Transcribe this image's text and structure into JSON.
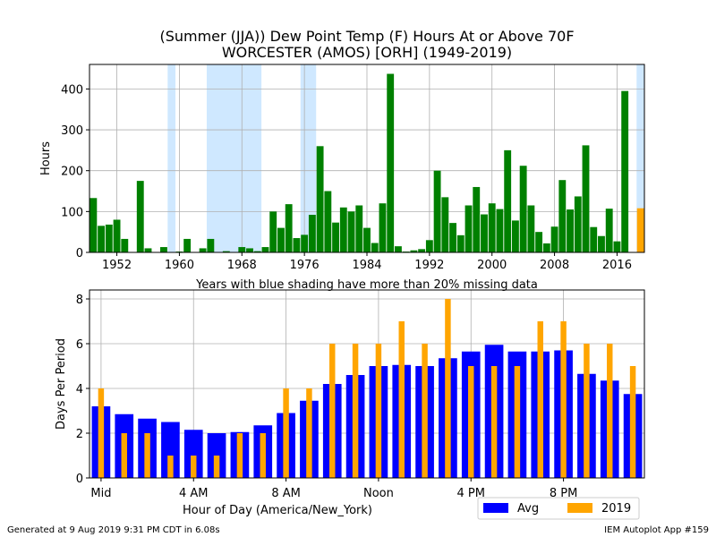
{
  "title_line1": "(Summer (JJA)) Dew Point Temp (F) Hours At or Above 70F",
  "title_line2": "WORCESTER (AMOS) [ORH] (1949-2019)",
  "note": "Years with blue shading have more than 20% missing data",
  "footer_left": "Generated at 9 Aug 2019 9:31 PM CDT in 6.08s",
  "footer_right": "IEM Autoplot App #159",
  "colors": {
    "yearly_bar": "#008000",
    "current_year_bar": "#ffa500",
    "missing_shade": "#cfe8ff",
    "avg_bar": "#0000ff",
    "year_bar": "#ffa500",
    "grid": "#b0b0b0"
  },
  "chart_data": [
    {
      "type": "bar",
      "title": "(Summer (JJA)) Dew Point Temp (F) Hours At or Above 70F",
      "ylabel": "Hours",
      "xlabel": "",
      "grid": true,
      "xlim": [
        1948.5,
        2019.5
      ],
      "ylim": [
        0,
        460
      ],
      "x_ticks": [
        1952,
        1960,
        1968,
        1976,
        1984,
        1992,
        2000,
        2008,
        2016
      ],
      "y_ticks": [
        0,
        100,
        200,
        300,
        400
      ],
      "years": [
        1949,
        1950,
        1951,
        1952,
        1953,
        1954,
        1955,
        1956,
        1957,
        1958,
        1959,
        1960,
        1961,
        1962,
        1963,
        1964,
        1965,
        1966,
        1967,
        1968,
        1969,
        1970,
        1971,
        1972,
        1973,
        1974,
        1975,
        1976,
        1977,
        1978,
        1979,
        1980,
        1981,
        1982,
        1983,
        1984,
        1985,
        1986,
        1987,
        1988,
        1989,
        1990,
        1991,
        1992,
        1993,
        1994,
        1995,
        1996,
        1997,
        1998,
        1999,
        2000,
        2001,
        2002,
        2003,
        2004,
        2005,
        2006,
        2007,
        2008,
        2009,
        2010,
        2011,
        2012,
        2013,
        2014,
        2015,
        2016,
        2017,
        2018,
        2019
      ],
      "values": [
        133,
        65,
        68,
        80,
        33,
        0,
        175,
        10,
        0,
        13,
        0,
        2,
        33,
        0,
        10,
        33,
        0,
        3,
        0,
        13,
        10,
        3,
        13,
        100,
        60,
        118,
        35,
        43,
        92,
        260,
        150,
        73,
        110,
        100,
        115,
        60,
        23,
        120,
        437,
        15,
        2,
        5,
        8,
        30,
        200,
        135,
        72,
        42,
        115,
        160,
        93,
        120,
        106,
        250,
        78,
        212,
        115,
        50,
        22,
        63,
        177,
        105,
        137,
        262,
        62,
        40,
        107,
        27,
        395,
        0,
        108
      ],
      "highlight_year": 2019,
      "missing_year_ranges": [
        [
          1958.5,
          1959.5
        ],
        [
          1963.5,
          1970.5
        ],
        [
          1975.5,
          1977.5
        ],
        [
          2018.5,
          2019.5
        ]
      ],
      "annotation": "Years with blue shading have more than 20% missing data"
    },
    {
      "type": "bar",
      "xlabel": "Hour of Day (America/New_York)",
      "ylabel": "Days Per Period",
      "grid": true,
      "xlim": [
        -0.5,
        23.5
      ],
      "ylim": [
        0,
        8.4
      ],
      "x_ticks": [
        0,
        4,
        8,
        12,
        16,
        20
      ],
      "x_tick_labels": [
        "Mid",
        "4 AM",
        "8 AM",
        "Noon",
        "4 PM",
        "8 PM"
      ],
      "y_ticks": [
        0,
        2,
        4,
        6,
        8
      ],
      "legend_position": "lower-right, outside",
      "hours": [
        0,
        1,
        2,
        3,
        4,
        5,
        6,
        7,
        8,
        9,
        10,
        11,
        12,
        13,
        14,
        15,
        16,
        17,
        18,
        19,
        20,
        21,
        22,
        23
      ],
      "series": [
        {
          "name": "Avg",
          "values": [
            3.2,
            2.85,
            2.65,
            2.5,
            2.15,
            2.0,
            2.05,
            2.35,
            2.9,
            3.45,
            4.2,
            4.6,
            5.0,
            5.05,
            5.0,
            5.35,
            5.65,
            5.95,
            5.65,
            5.65,
            5.7,
            4.65,
            4.35,
            3.75
          ]
        },
        {
          "name": "2019",
          "values": [
            4,
            2,
            2,
            1,
            1,
            1,
            2,
            2,
            4,
            4,
            6,
            6,
            6,
            7,
            6,
            8,
            5,
            5,
            5,
            7,
            7,
            6,
            6,
            5
          ]
        }
      ]
    }
  ]
}
